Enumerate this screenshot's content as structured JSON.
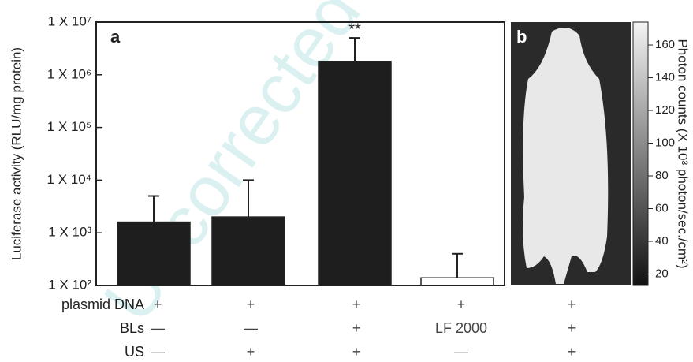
{
  "chart_data": {
    "type": "bar",
    "panel_label": "a",
    "y_label": "Luciferase activity (RLU/mg protein)",
    "log_scale": true,
    "ylim": [
      100,
      10000000
    ],
    "yticks": [
      {
        "value": 100,
        "label": "1 X 10²"
      },
      {
        "value": 1000,
        "label": "1 X 10³"
      },
      {
        "value": 10000,
        "label": "1 X 10⁴"
      },
      {
        "value": 100000,
        "label": "1 X 10⁵"
      },
      {
        "value": 1000000,
        "label": "1 X 10⁶"
      },
      {
        "value": 10000000,
        "label": "1 X 10⁷"
      }
    ],
    "values": [
      1600,
      2000,
      1800000,
      140
    ],
    "errors": [
      3400,
      8000,
      3200000,
      260
    ],
    "colors": [
      "#1e1e1e",
      "#1e1e1e",
      "#1e1e1e",
      "#ffffff"
    ],
    "annotations": [
      {
        "bar": 2,
        "text": "**"
      }
    ],
    "watermark": "Uncorrected"
  },
  "image_panel": {
    "panel_label": "b",
    "colorbar_label": "Photon counts (X 10³ photon/sec./cm²)",
    "cbar_lim": [
      13,
      174
    ],
    "cbar_ticks": [
      20,
      40,
      60,
      80,
      100,
      120,
      140,
      160
    ]
  },
  "conditions": {
    "rows": [
      {
        "label": "plasmid DNA",
        "values": [
          "+",
          "+",
          "+",
          "+",
          "+"
        ]
      },
      {
        "label": "BLs",
        "values": [
          "—",
          "—",
          "+",
          "LF 2000",
          "+"
        ]
      },
      {
        "label": "US",
        "values": [
          "—",
          "+",
          "+",
          "—",
          "+"
        ]
      }
    ]
  }
}
